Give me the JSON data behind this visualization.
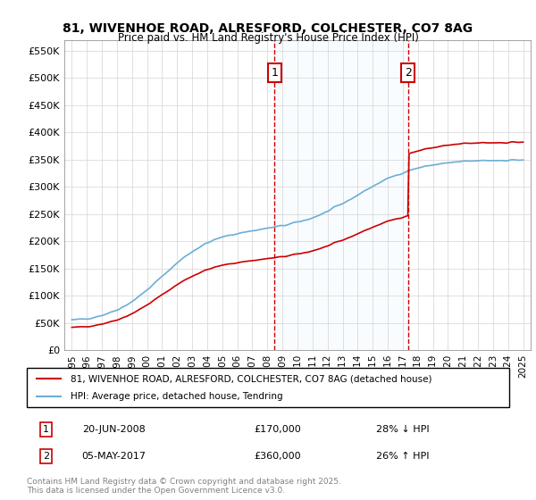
{
  "title_line1": "81, WIVENHOE ROAD, ALRESFORD, COLCHESTER, CO7 8AG",
  "title_line2": "Price paid vs. HM Land Registry's House Price Index (HPI)",
  "ylabel_ticks": [
    "£0",
    "£50K",
    "£100K",
    "£150K",
    "£200K",
    "£250K",
    "£300K",
    "£350K",
    "£400K",
    "£450K",
    "£500K",
    "£550K"
  ],
  "ytick_values": [
    0,
    50000,
    100000,
    150000,
    200000,
    250000,
    300000,
    350000,
    400000,
    450000,
    500000,
    550000
  ],
  "ylim": [
    0,
    570000
  ],
  "xlim_start": 1994.5,
  "xlim_end": 2025.5,
  "xticks": [
    1995,
    1996,
    1997,
    1998,
    1999,
    2000,
    2001,
    2002,
    2003,
    2004,
    2005,
    2006,
    2007,
    2008,
    2009,
    2010,
    2011,
    2012,
    2013,
    2014,
    2015,
    2016,
    2017,
    2018,
    2019,
    2020,
    2021,
    2022,
    2023,
    2024,
    2025
  ],
  "sale1_x": 2008.47,
  "sale1_y": 170000,
  "sale1_label": "1",
  "sale2_x": 2017.35,
  "sale2_y": 360000,
  "sale2_label": "2",
  "hpi_color": "#6baed6",
  "price_color": "#cc0000",
  "annotation_box_color": "#cc0000",
  "vline_color": "#cc0000",
  "background_highlight_color": "#ddeeff",
  "legend_line1": "81, WIVENHOE ROAD, ALRESFORD, COLCHESTER, CO7 8AG (detached house)",
  "legend_line2": "HPI: Average price, detached house, Tendring",
  "table_row1_label": "1",
  "table_row1_date": "20-JUN-2008",
  "table_row1_price": "£170,000",
  "table_row1_note": "28% ↓ HPI",
  "table_row2_label": "2",
  "table_row2_date": "05-MAY-2017",
  "table_row2_price": "£360,000",
  "table_row2_note": "26% ↑ HPI",
  "footer": "Contains HM Land Registry data © Crown copyright and database right 2025.\nThis data is licensed under the Open Government Licence v3.0."
}
